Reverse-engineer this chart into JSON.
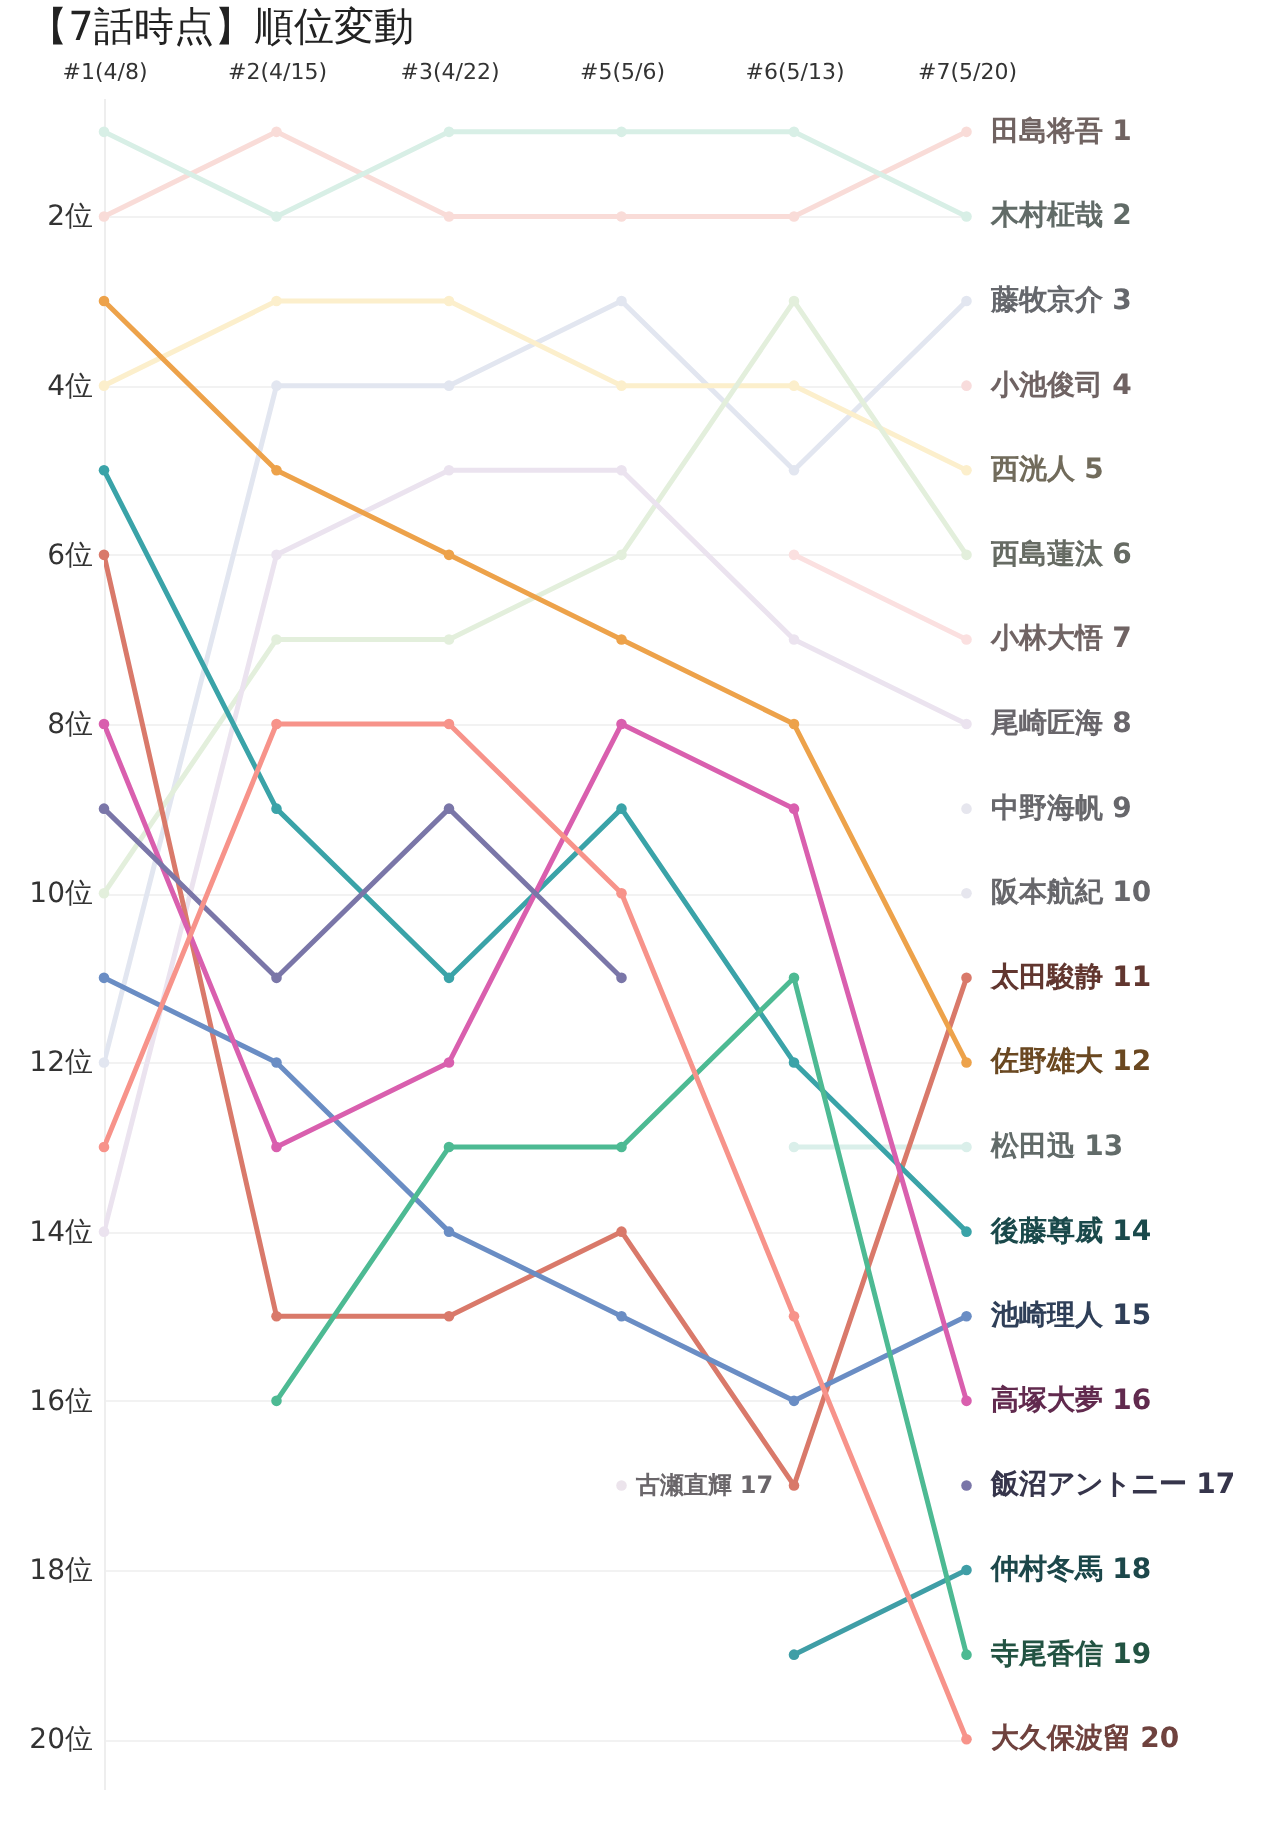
{
  "chart_data": {
    "type": "line",
    "title": "【7話時点】順位変動",
    "categories": [
      "#1(4/8)",
      "#2(4/15)",
      "#3(4/22)",
      "#5(5/6)",
      "#6(5/13)",
      "#7(5/20)"
    ],
    "series": [
      {
        "name": "田島将吾 1",
        "color": "#f9dcd8",
        "values": [
          2,
          1,
          2,
          2,
          2,
          1
        ]
      },
      {
        "name": "木村柾哉 2",
        "color": "#d8efe6",
        "values": [
          1,
          2,
          1,
          1,
          1,
          2
        ]
      },
      {
        "name": "藤牧京介 3",
        "color": "#e2e6f0",
        "values": [
          12,
          4,
          4,
          3,
          5,
          3
        ]
      },
      {
        "name": "小池俊司 4",
        "color": "#f8dcdc",
        "values": [
          null,
          null,
          null,
          null,
          null,
          4
        ]
      },
      {
        "name": "西洸人 5",
        "color": "#fcefcc",
        "values": [
          4,
          3,
          3,
          4,
          4,
          5
        ]
      },
      {
        "name": "西島蓮汰 6",
        "color": "#e3efdc",
        "values": [
          10,
          7,
          7,
          6,
          3,
          6
        ]
      },
      {
        "name": "小林大悟 7",
        "color": "#fbe0e0",
        "values": [
          null,
          null,
          null,
          null,
          6,
          7
        ]
      },
      {
        "name": "尾崎匠海 8",
        "color": "#ebe3ef",
        "values": [
          14,
          6,
          5,
          5,
          7,
          8
        ]
      },
      {
        "name": "中野海帆 9",
        "color": "#e6e6ee",
        "values": [
          null,
          null,
          null,
          null,
          null,
          9
        ]
      },
      {
        "name": "阪本航紀 10",
        "color": "#e6e6ee",
        "values": [
          null,
          null,
          null,
          null,
          null,
          10
        ]
      },
      {
        "name": "松田迅 13",
        "color": "#daefea",
        "values": [
          null,
          null,
          null,
          null,
          13,
          13
        ]
      },
      {
        "name": "古瀬直輝 17",
        "color": "#ece4ec",
        "values": [
          null,
          null,
          null,
          17,
          null,
          null
        ]
      },
      {
        "name": "太田駿静 11",
        "color": "#d9796a",
        "values": [
          6,
          15,
          15,
          14,
          17,
          11
        ]
      },
      {
        "name": "佐野雄大 12",
        "color": "#eda24a",
        "values": [
          3,
          5,
          6,
          7,
          8,
          12
        ]
      },
      {
        "name": "後藤尊威 14",
        "color": "#3aa3a8",
        "values": [
          5,
          9,
          11,
          9,
          12,
          14
        ]
      },
      {
        "name": "池崎理人 15",
        "color": "#6a8dc4",
        "values": [
          11,
          12,
          14,
          15,
          16,
          15
        ]
      },
      {
        "name": "高塚大夢 16",
        "color": "#d95fae",
        "values": [
          8,
          13,
          12,
          8,
          9,
          16
        ]
      },
      {
        "name": "飯沼アントニー 17",
        "color": "#7a76a8",
        "values": [
          9,
          11,
          9,
          11,
          null,
          17
        ]
      },
      {
        "name": "仲村冬馬 18",
        "color": "#3f9ea6",
        "values": [
          null,
          null,
          null,
          null,
          19,
          18
        ]
      },
      {
        "name": "寺尾香信 19",
        "color": "#4dba93",
        "values": [
          null,
          16,
          13,
          13,
          11,
          19
        ]
      },
      {
        "name": "大久保波留 20",
        "color": "#f7938a",
        "values": [
          13,
          8,
          8,
          10,
          15,
          20
        ]
      }
    ],
    "ylim": [
      20.6,
      0.6
    ],
    "yticks": [
      {
        "value": 2,
        "label": "2位"
      },
      {
        "value": 4,
        "label": "4位"
      },
      {
        "value": 6,
        "label": "6位"
      },
      {
        "value": 8,
        "label": "8位"
      },
      {
        "value": 10,
        "label": "10位"
      },
      {
        "value": 12,
        "label": "12位"
      },
      {
        "value": 14,
        "label": "14位"
      },
      {
        "value": 16,
        "label": "16位"
      },
      {
        "value": 18,
        "label": "18位"
      },
      {
        "value": 20,
        "label": "20位"
      }
    ],
    "grid": "y",
    "legend": false,
    "marker": "circle",
    "line_style": "solid"
  }
}
